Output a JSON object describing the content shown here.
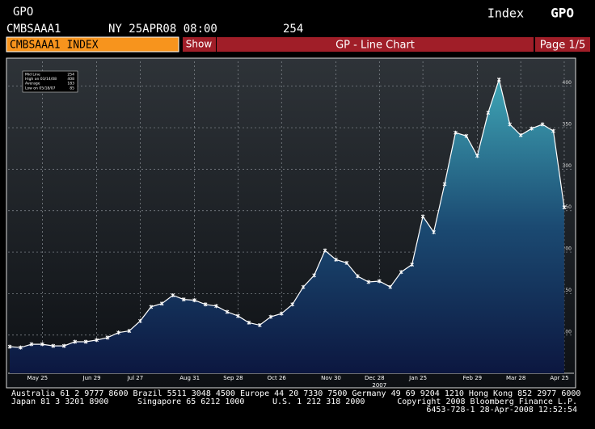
{
  "header": {
    "left_code": "GPO",
    "ticker": "CMBSAAA1",
    "timestamp": "NY 25APR08 08:00",
    "last_value": "254",
    "right_label": "Index",
    "right_code": "GPO"
  },
  "toolbar": {
    "security": "CMBSAAA1 INDEX",
    "button": "Show",
    "title": "GP - Line Chart",
    "page": "Page 1/5"
  },
  "chart_data": {
    "type": "line",
    "categories": [
      null,
      null,
      null,
      "May 25",
      null,
      null,
      null,
      null,
      "Jun 29",
      null,
      null,
      null,
      "Jul 27",
      null,
      null,
      null,
      null,
      "Aug 31",
      null,
      null,
      null,
      "Sep 28",
      null,
      null,
      null,
      "Oct 26",
      null,
      null,
      null,
      null,
      "Nov 30",
      null,
      null,
      null,
      "Dec 28",
      null,
      null,
      null,
      "Jan 25",
      null,
      null,
      null,
      null,
      "Feb 29",
      null,
      null,
      null,
      "Mar 28",
      null,
      null,
      null,
      "Apr 25"
    ],
    "year_label": "2007",
    "series": [
      {
        "name": "Mid Line",
        "color": "#ffffff",
        "values": [
          86,
          85,
          89,
          89,
          87,
          87,
          92,
          92,
          94,
          97,
          103,
          105,
          117,
          134,
          138,
          148,
          143,
          142,
          137,
          135,
          128,
          123,
          115,
          112,
          122,
          126,
          137,
          158,
          172,
          202,
          191,
          187,
          171,
          164,
          165,
          158,
          176,
          185,
          243,
          224,
          282,
          344,
          340,
          316,
          368,
          408,
          354,
          341,
          349,
          354,
          346,
          254
        ]
      }
    ],
    "stats": [
      {
        "label": "Mid Line",
        "value": 254
      },
      {
        "label": "High on 03/14/08",
        "value": 408
      },
      {
        "label": "Average",
        "value": 183
      },
      {
        "label": "Low on 05/18/07",
        "value": 85
      }
    ],
    "ylim": [
      54,
      426
    ],
    "yticks": [
      100,
      150,
      200,
      250,
      300,
      350,
      400
    ],
    "grid": true
  },
  "footer": {
    "line1": "Australia 61 2 9777 8600 Brazil 5511 3048 4500 Europe 44 20 7330 7500 Germany 49 69 9204 1210 Hong Kong 852 2977 6000",
    "japan": "Japan 81 3 3201 8900",
    "singapore": "Singapore 65 6212 1000",
    "us": "U.S. 1 212 318 2000",
    "copyright": "Copyright 2008 Bloomberg Finance L.P.",
    "stamp": "6453-728-1 28-Apr-2008 12:52:54"
  }
}
